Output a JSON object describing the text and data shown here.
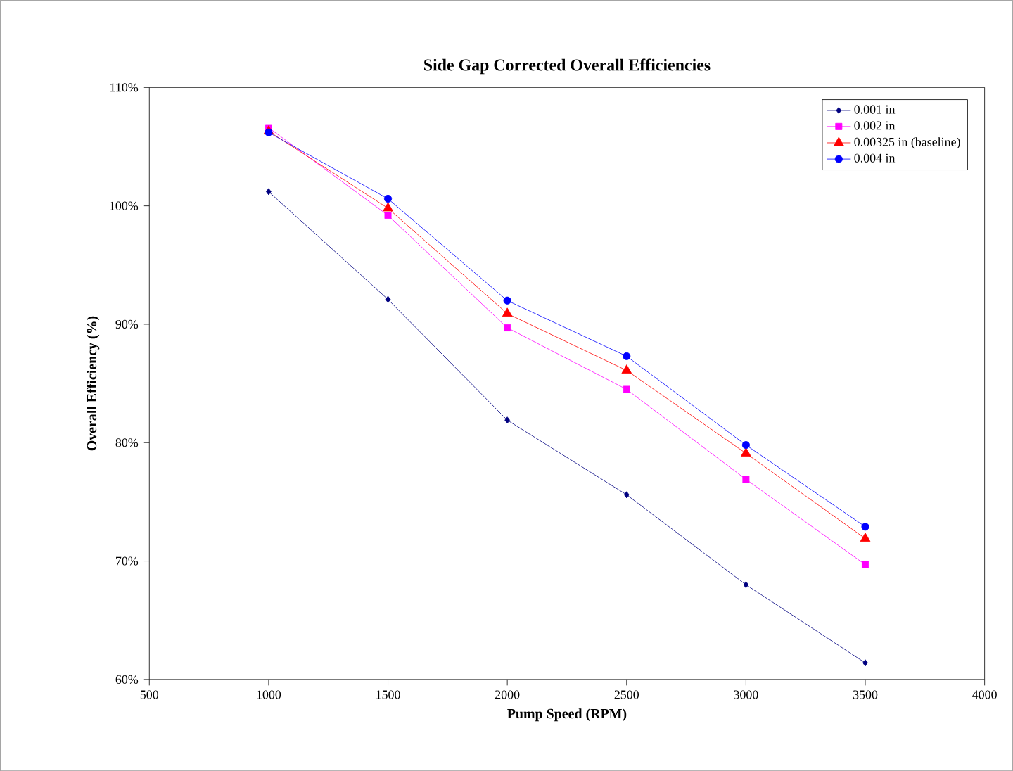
{
  "chart_data": {
    "type": "line",
    "title": "Side Gap Corrected Overall Efficiencies",
    "xlabel": "Pump Speed (RPM)",
    "ylabel": "Overall Efficiency (%)",
    "x": [
      1000,
      1500,
      2000,
      2500,
      3000,
      3500
    ],
    "series": [
      {
        "name": "0.001 in",
        "color": "#000080",
        "marker": "diamond",
        "values": [
          101.2,
          92.1,
          81.9,
          75.6,
          68.0,
          61.4
        ]
      },
      {
        "name": "0.002 in",
        "color": "#ff00ff",
        "marker": "square",
        "values": [
          106.6,
          99.2,
          89.7,
          84.5,
          76.9,
          69.7
        ]
      },
      {
        "name": "0.00325 in (baseline)",
        "color": "#ff0000",
        "marker": "triangle",
        "values": [
          106.3,
          99.8,
          90.9,
          86.1,
          79.1,
          71.9
        ]
      },
      {
        "name": "0.004 in",
        "color": "#0000ff",
        "marker": "circle",
        "values": [
          106.2,
          100.6,
          92.0,
          87.3,
          79.8,
          72.9
        ]
      }
    ],
    "xlim": [
      500,
      4000
    ],
    "xticks": [
      500,
      1000,
      1500,
      2000,
      2500,
      3000,
      3500,
      4000
    ],
    "ylim": [
      60,
      110
    ],
    "yticks": [
      {
        "value": 60,
        "label": "60%"
      },
      {
        "value": 70,
        "label": "70%"
      },
      {
        "value": 80,
        "label": "80%"
      },
      {
        "value": 90,
        "label": "90%"
      },
      {
        "value": 100,
        "label": "100%"
      },
      {
        "value": 110,
        "label": "110%"
      }
    ],
    "grid": false,
    "legend": "top right",
    "line_style": "solid"
  }
}
